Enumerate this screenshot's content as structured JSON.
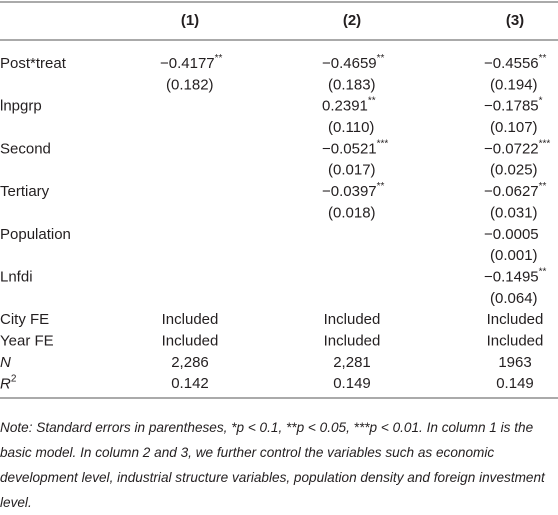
{
  "table": {
    "header": [
      "(1)",
      "(2)",
      "(3)"
    ],
    "rows": [
      {
        "label": "Post*treat",
        "cells": [
          {
            "coef": "−0.4177",
            "stars": "**",
            "se": "(0.182)"
          },
          {
            "coef": "−0.4659",
            "stars": "**",
            "se": "(0.183)"
          },
          {
            "coef": "−0.4556",
            "stars": "**",
            "se": "(0.194)"
          }
        ]
      },
      {
        "label": "lnpgrp",
        "cells": [
          null,
          {
            "coef": "0.2391",
            "stars": "**",
            "se": "(0.110)"
          },
          {
            "coef": "−0.1785",
            "stars": "*",
            "se": "(0.107)"
          }
        ]
      },
      {
        "label": "Second",
        "cells": [
          null,
          {
            "coef": "−0.0521",
            "stars": "***",
            "se": "(0.017)"
          },
          {
            "coef": "−0.0722",
            "stars": "***",
            "se": "(0.025)"
          }
        ]
      },
      {
        "label": "Tertiary",
        "cells": [
          null,
          {
            "coef": "−0.0397",
            "stars": "**",
            "se": "(0.018)"
          },
          {
            "coef": "−0.0627",
            "stars": "**",
            "se": "(0.031)"
          }
        ]
      },
      {
        "label": "Population",
        "cells": [
          null,
          null,
          {
            "coef": "−0.0005",
            "se": "(0.001)"
          }
        ]
      },
      {
        "label": "Lnfdi",
        "cells": [
          null,
          null,
          {
            "coef": "−0.1495",
            "stars": "**",
            "se": "(0.064)"
          }
        ]
      },
      {
        "label": "City FE",
        "cells": [
          {
            "text": "Included"
          },
          {
            "text": "Included"
          },
          {
            "text": "Included"
          }
        ]
      },
      {
        "label": "Year FE",
        "cells": [
          {
            "text": "Included"
          },
          {
            "text": "Included"
          },
          {
            "text": "Included"
          }
        ]
      },
      {
        "label": "N",
        "italic": true,
        "cells": [
          {
            "text": "2,286"
          },
          {
            "text": "2,281"
          },
          {
            "text": "1963"
          }
        ]
      },
      {
        "label": "R",
        "sup": "2",
        "italic": true,
        "cells": [
          {
            "text": "0.142"
          },
          {
            "text": "0.149"
          },
          {
            "text": "0.149"
          }
        ]
      }
    ],
    "note": "Note: Standard errors in parentheses, *p < 0.1, **p < 0.05, ***p < 0.01. In column 1 is the basic model. In column 2 and 3, we further control the variables such as economic development level, industrial structure variables, population density and foreign investment level."
  }
}
